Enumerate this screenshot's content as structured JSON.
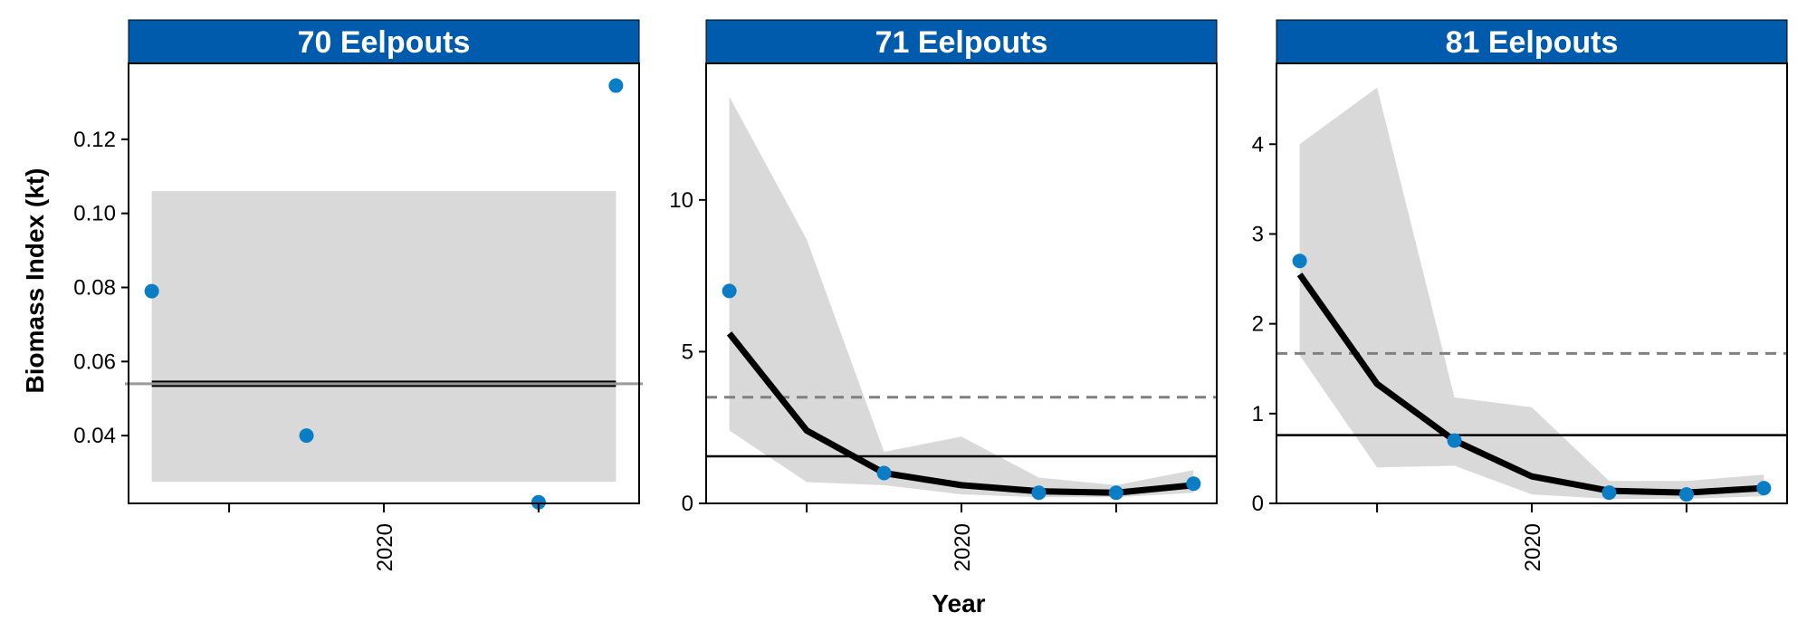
{
  "chart_data": {
    "type": "line",
    "xlabel": "Year",
    "ylabel": "Biomass Index (kt)",
    "colors": {
      "strip": "#005BAC",
      "point": "#0A7DC7",
      "band": "#D9D9D9",
      "trend": "#000000",
      "dashed": "#808080",
      "hline": "#000000"
    },
    "panels": [
      {
        "title": "70 Eelpouts",
        "xlim": [
          2016.7,
          2023.3
        ],
        "ylim": [
          0.0217,
          0.1405
        ],
        "yticks": [
          0.04,
          0.06,
          0.08,
          0.1,
          0.12
        ],
        "ytick_labels": [
          "0.04",
          "0.06",
          "0.08",
          "0.10",
          "0.12"
        ],
        "xticks": [
          2018,
          2020,
          2022
        ],
        "xtick_labels": [
          "",
          "2020",
          ""
        ],
        "points": {
          "x": [
            2017,
            2019,
            2022,
            2023
          ],
          "y": [
            0.079,
            0.04,
            0.022,
            0.1345
          ]
        },
        "band": {
          "x": [
            2017,
            2023
          ],
          "lower": [
            0.0275,
            0.0275
          ],
          "upper": [
            0.106,
            0.106
          ]
        },
        "trend": {
          "x": [
            2017,
            2023
          ],
          "y": [
            0.054,
            0.054
          ]
        },
        "hline_gray": 0.054,
        "hline_black": null,
        "dashed": null
      },
      {
        "title": "71 Eelpouts",
        "xlim": [
          2016.7,
          2023.3
        ],
        "ylim": [
          0,
          14.5
        ],
        "yticks": [
          0,
          5,
          10
        ],
        "ytick_labels": [
          "0",
          "5",
          "10"
        ],
        "xticks": [
          2018,
          2020,
          2022
        ],
        "xtick_labels": [
          "",
          "2020",
          ""
        ],
        "points": {
          "x": [
            2017,
            2019,
            2021,
            2022,
            2023
          ],
          "y": [
            7.0,
            1.0,
            0.35,
            0.35,
            0.65
          ]
        },
        "band": {
          "x": [
            2017,
            2018,
            2019,
            2020,
            2021,
            2022,
            2023
          ],
          "lower": [
            2.4,
            0.7,
            0.6,
            0.3,
            0.2,
            0.2,
            0.35
          ],
          "upper": [
            13.4,
            8.7,
            1.7,
            2.2,
            0.85,
            0.6,
            1.1
          ]
        },
        "trend": {
          "x": [
            2017,
            2018,
            2019,
            2020,
            2021,
            2022,
            2023
          ],
          "y": [
            5.6,
            2.4,
            1.0,
            0.6,
            0.4,
            0.35,
            0.6
          ]
        },
        "hline_gray": null,
        "hline_black": 1.55,
        "dashed": 3.5
      },
      {
        "title": "81 Eelpouts",
        "xlim": [
          2016.7,
          2023.3
        ],
        "ylim": [
          0,
          4.9
        ],
        "yticks": [
          0,
          1,
          2,
          3,
          4
        ],
        "ytick_labels": [
          "0",
          "1",
          "2",
          "3",
          "4"
        ],
        "xticks": [
          2018,
          2020,
          2022
        ],
        "xtick_labels": [
          "",
          "2020",
          ""
        ],
        "points": {
          "x": [
            2017,
            2019,
            2021,
            2022,
            2023
          ],
          "y": [
            2.7,
            0.7,
            0.12,
            0.1,
            0.17
          ]
        },
        "band": {
          "x": [
            2017,
            2018,
            2019,
            2020,
            2021,
            2022,
            2023
          ],
          "lower": [
            1.65,
            0.4,
            0.42,
            0.1,
            0.05,
            0.05,
            0.08
          ],
          "upper": [
            4.0,
            4.63,
            1.18,
            1.07,
            0.25,
            0.25,
            0.32
          ]
        },
        "trend": {
          "x": [
            2017,
            2018,
            2019,
            2020,
            2021,
            2022,
            2023
          ],
          "y": [
            2.55,
            1.33,
            0.7,
            0.3,
            0.14,
            0.12,
            0.17
          ]
        },
        "hline_gray": null,
        "hline_black": 0.76,
        "dashed": 1.67
      }
    ]
  }
}
